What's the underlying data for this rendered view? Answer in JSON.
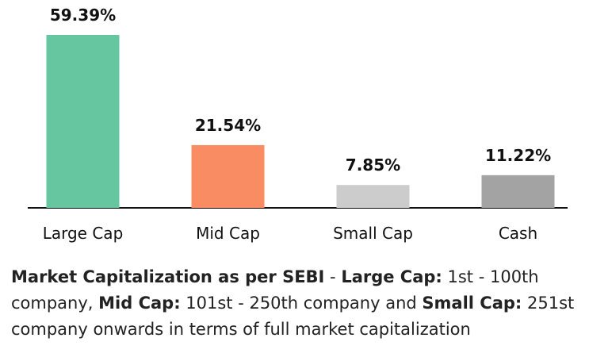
{
  "chart_data": {
    "type": "bar",
    "categories": [
      "Large Cap",
      "Mid Cap",
      "Small Cap",
      "Cash"
    ],
    "values": [
      59.39,
      21.54,
      7.85,
      11.22
    ],
    "value_labels": [
      "59.39%",
      "21.54%",
      "7.85%",
      "11.22%"
    ],
    "colors": [
      "#66C6A0",
      "#FA8C63",
      "#CCCCCC",
      "#A3A3A3"
    ],
    "ylim": [
      0,
      60
    ],
    "grid": false,
    "title": "",
    "xlabel": "",
    "ylabel": ""
  },
  "footnote": {
    "part1_bold": "Market Capitalization as per SEBI",
    "part2": " - ",
    "part3_bold": "Large Cap:",
    "part4": " 1st - 100th company, ",
    "part5_bold": "Mid Cap:",
    "part6": " 101st - 250th company and ",
    "part7_bold": "Small Cap:",
    "part8": " 251st company onwards in terms of full market capitalization"
  }
}
